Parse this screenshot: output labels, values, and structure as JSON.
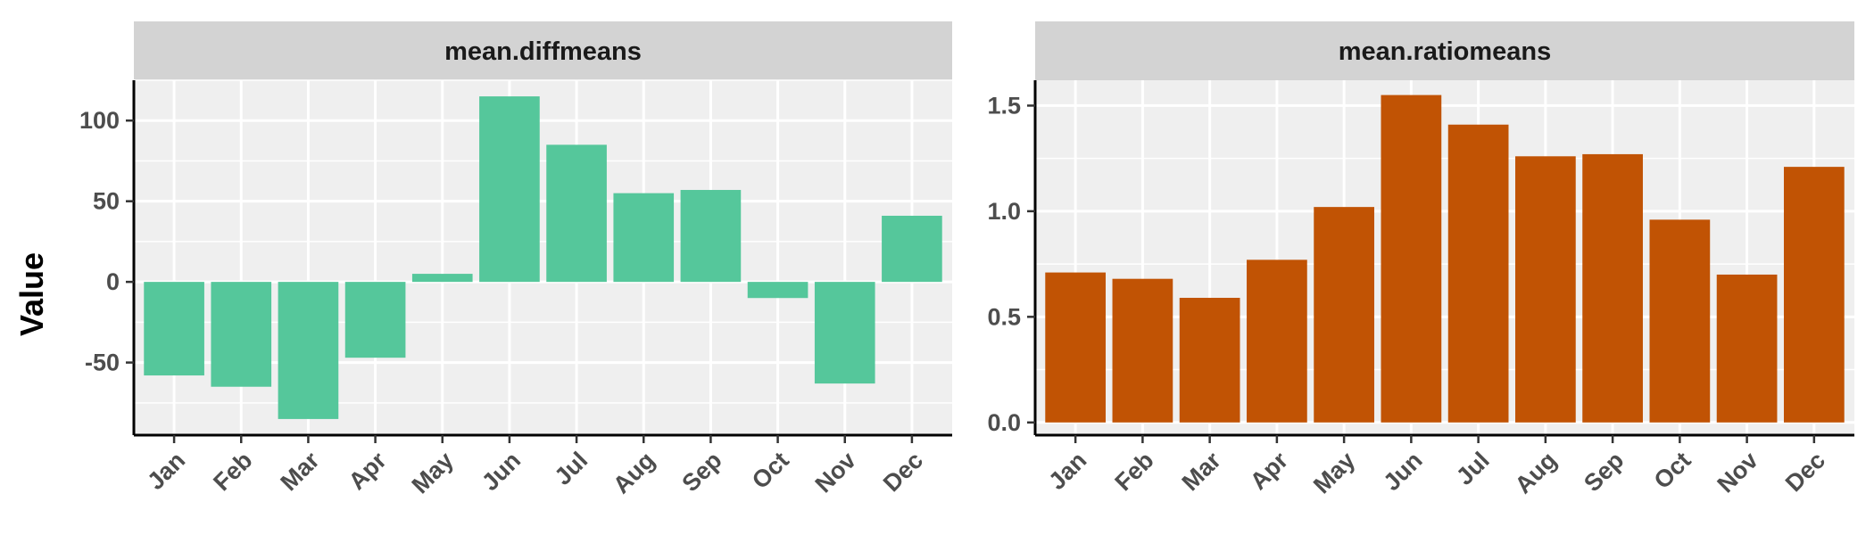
{
  "y_axis_label": "Value",
  "colors": {
    "diff": "#55C79B",
    "ratio": "#C15304",
    "panel_bg": "#EFEFEF",
    "strip_bg": "#D3D3D3",
    "grid": "#FFFFFF"
  },
  "chart_data": [
    {
      "type": "bar",
      "facet": "mean.diffmeans",
      "categories": [
        "Jan",
        "Feb",
        "Mar",
        "Apr",
        "May",
        "Jun",
        "Jul",
        "Aug",
        "Sep",
        "Oct",
        "Nov",
        "Dec"
      ],
      "values": [
        -58,
        -65,
        -85,
        -47,
        5,
        115,
        85,
        55,
        57,
        -10,
        -63,
        41
      ],
      "ylabel": "Value",
      "ylim": [
        -95,
        125
      ],
      "yticks": [
        -50,
        0,
        50,
        100
      ],
      "ytick_labels": [
        "-50",
        "0",
        "50",
        "100"
      ],
      "color": "#55C79B",
      "grid": true
    },
    {
      "type": "bar",
      "facet": "mean.ratiomeans",
      "categories": [
        "Jan",
        "Feb",
        "Mar",
        "Apr",
        "May",
        "Jun",
        "Jul",
        "Aug",
        "Sep",
        "Oct",
        "Nov",
        "Dec"
      ],
      "values": [
        0.71,
        0.68,
        0.59,
        0.77,
        1.02,
        1.55,
        1.41,
        1.26,
        1.27,
        0.96,
        0.7,
        1.21
      ],
      "ylim": [
        -0.06,
        1.62
      ],
      "yticks": [
        0.0,
        0.5,
        1.0,
        1.5
      ],
      "ytick_labels": [
        "0.0",
        "0.5",
        "1.0",
        "1.5"
      ],
      "color": "#C15304",
      "grid": true
    }
  ]
}
